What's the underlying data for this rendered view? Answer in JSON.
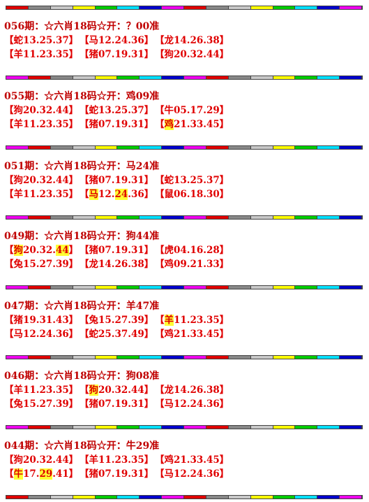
{
  "sections": [
    {
      "title": "056期：☆六肖18码☆开：？00准",
      "rows": [
        [
          [
            "【蛇13.25.37】"
          ],
          [
            "【马12.24.36】"
          ],
          [
            "【龙14.26.38】"
          ]
        ],
        [
          [
            "【羊11.23.35】"
          ],
          [
            "【猪07.19.31】"
          ],
          [
            "【狗20.32.44】"
          ]
        ]
      ]
    },
    {
      "title": "055期：☆六肖18码☆开：鸡09准",
      "rows": [
        [
          [
            "【狗20.32.44】"
          ],
          [
            "【蛇13.25.37】"
          ],
          [
            "【牛05.17.29】"
          ]
        ],
        [
          [
            "【羊11.23.35】"
          ],
          [
            "【猪07.19.31】"
          ],
          [
            "【",
            {
              "mark": "鸡"
            },
            "21.33.45】"
          ]
        ]
      ]
    },
    {
      "title": "051期：☆六肖18码☆开：马24准",
      "rows": [
        [
          [
            "【狗20.32.44】"
          ],
          [
            "【猪07.19.31】"
          ],
          [
            "【蛇13.25.37】"
          ]
        ],
        [
          [
            "【羊11.23.35】"
          ],
          [
            "【",
            {
              "mark": "马"
            },
            "12.",
            {
              "mark": "24"
            },
            ".36】"
          ],
          [
            "【鼠06.18.30】"
          ]
        ]
      ]
    },
    {
      "title": "049期：☆六肖18码☆开：狗44准",
      "rows": [
        [
          [
            "【",
            {
              "mark": "狗"
            },
            "20.32.",
            {
              "mark": "44"
            },
            "】"
          ],
          [
            "【猪07.19.31】"
          ],
          [
            "【虎04.16.28】"
          ]
        ],
        [
          [
            "【兔15.27.39】"
          ],
          [
            "【龙14.26.38】"
          ],
          [
            "【鸡09.21.33】"
          ]
        ]
      ]
    },
    {
      "title": "047期：☆六肖18码☆开：羊47准",
      "rows": [
        [
          [
            "【猪19.31.43】"
          ],
          [
            "【兔15.27.39】"
          ],
          [
            "【",
            {
              "mark": "羊"
            },
            "11.23.35】"
          ]
        ],
        [
          [
            "【马12.24.36】"
          ],
          [
            "【蛇25.37.49】"
          ],
          [
            "【鸡21.33.45】"
          ]
        ]
      ]
    },
    {
      "title": "046期：☆六肖18码☆开：狗08准",
      "rows": [
        [
          [
            "【羊11.23.35】"
          ],
          [
            "【",
            {
              "mark": "狗"
            },
            "20.32.44】"
          ],
          [
            "【龙14.26.38】"
          ]
        ],
        [
          [
            "【兔15.27.39】"
          ],
          [
            "【猪07.19.31】"
          ],
          [
            "【马12.24.36】"
          ]
        ]
      ]
    },
    {
      "title": "044期：☆六肖18码☆开：牛29准",
      "rows": [
        [
          [
            "【狗20.32.44】"
          ],
          [
            "【羊11.23.35】"
          ],
          [
            "【鸡21.33.45】"
          ]
        ],
        [
          [
            "【",
            {
              "mark": "牛"
            },
            "17.",
            {
              "mark": "29"
            },
            ".41】"
          ],
          [
            "【猪07.19.31】"
          ],
          [
            "【马12.24.36】"
          ]
        ]
      ]
    }
  ]
}
